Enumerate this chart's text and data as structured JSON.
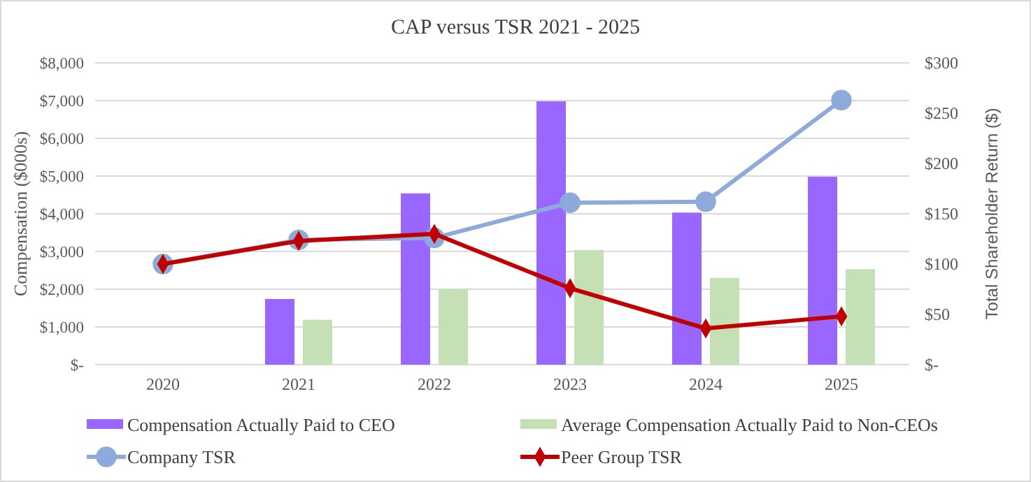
{
  "chart_data": {
    "type": "bar",
    "title": "CAP versus TSR 2021 - 2025",
    "ylabel": "Compensation ($000s)",
    "y2label": "Total Shareholder Return ($)",
    "categories": [
      "2020",
      "2021",
      "2022",
      "2023",
      "2024",
      "2025"
    ],
    "series": [
      {
        "name": "Compensation Actually Paid to CEO",
        "color": "#9966ff",
        "values": [
          null,
          1740,
          4540,
          6980,
          4030,
          4980
        ]
      },
      {
        "name": "Average Compensation Actually Paid to Non-CEOs",
        "color": "#c5e0b4",
        "values": [
          null,
          1190,
          2000,
          3040,
          2300,
          2530
        ]
      },
      {
        "name": "Company TSR",
        "type": "line",
        "axis": "y2",
        "marker": "circle",
        "color": "#8eaadb",
        "values": [
          100,
          124,
          126,
          161,
          162,
          263
        ]
      },
      {
        "name": "Peer Group TSR",
        "type": "line",
        "axis": "y2",
        "marker": "diamond",
        "color": "#c00000",
        "values": [
          100,
          123,
          130,
          76,
          36,
          48
        ]
      }
    ],
    "ylim": [
      0,
      8000
    ],
    "yticks": [
      {
        "value": 0,
        "label": "$-"
      },
      {
        "value": 1000,
        "label": "$1,000"
      },
      {
        "value": 2000,
        "label": "$2,000"
      },
      {
        "value": 3000,
        "label": "$3,000"
      },
      {
        "value": 4000,
        "label": "$4,000"
      },
      {
        "value": 5000,
        "label": "$5,000"
      },
      {
        "value": 6000,
        "label": "$6,000"
      },
      {
        "value": 7000,
        "label": "$7,000"
      },
      {
        "value": 8000,
        "label": "$8,000"
      }
    ],
    "y2lim": [
      0,
      300
    ],
    "y2ticks": [
      {
        "value": 0,
        "label": "$-"
      },
      {
        "value": 50,
        "label": "$50"
      },
      {
        "value": 100,
        "label": "$100"
      },
      {
        "value": 150,
        "label": "$150"
      },
      {
        "value": 200,
        "label": "$200"
      },
      {
        "value": 250,
        "label": "$250"
      },
      {
        "value": 300,
        "label": "$300"
      }
    ],
    "grid": "y",
    "legend": "bottom"
  }
}
